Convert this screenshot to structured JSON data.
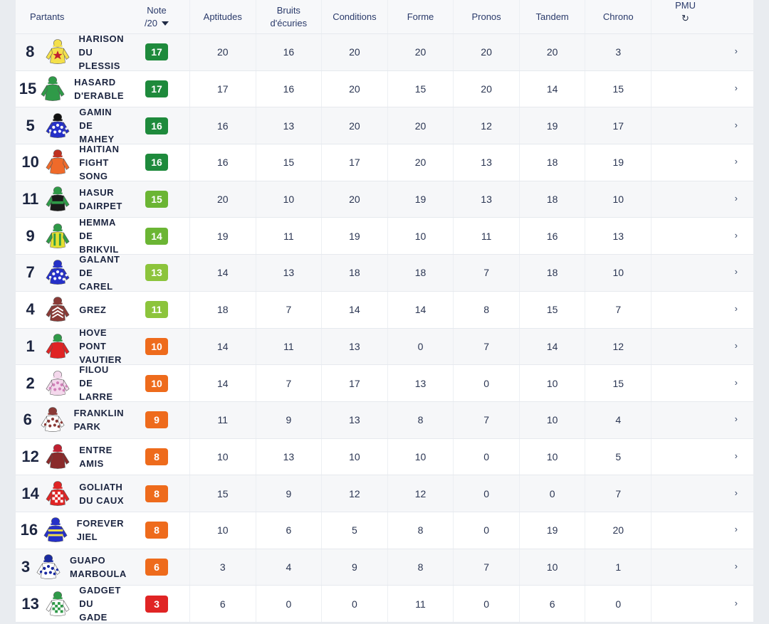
{
  "header": {
    "partants": "Partants",
    "note_line1": "Note",
    "note_line2": "/20",
    "aptitudes": "Aptitudes",
    "bruits_line1": "Bruits",
    "bruits_line2": "d'écuries",
    "conditions": "Conditions",
    "forme": "Forme",
    "pronos": "Pronos",
    "tandem": "Tandem",
    "chrono": "Chrono",
    "pmu": "PMU",
    "pmu_icon": "refresh-icon",
    "sort_icon": "caret-down-icon"
  },
  "colors": {
    "note_17": "#1e8a3c",
    "note_15": "#6bb534",
    "note_13": "#8cc43c",
    "note_11": "#8cc43c",
    "note_10": "#ee6b1c",
    "note_3": "#e02424"
  },
  "rows": [
    {
      "num": "8",
      "name": "HARISON DU PLESSIS",
      "note": "17",
      "note_color": "#1e8a3c",
      "aptitudes": "20",
      "bruits": "16",
      "conditions": "20",
      "forme": "20",
      "pronos": "20",
      "tandem": "20",
      "chrono": "3",
      "silk": {
        "body": "#f4e04a",
        "sleeve": "#f4e04a",
        "cap": "#f4e04a",
        "accent": "#c02030",
        "pattern": "star"
      }
    },
    {
      "num": "15",
      "name": "HASARD D'ERABLE",
      "note": "17",
      "note_color": "#1e8a3c",
      "aptitudes": "17",
      "bruits": "16",
      "conditions": "20",
      "forme": "15",
      "pronos": "20",
      "tandem": "14",
      "chrono": "15",
      "silk": {
        "body": "#2f9a48",
        "sleeve": "#2f9a48",
        "cap": "#2f9a48",
        "accent": "#ffffff",
        "pattern": "plain"
      }
    },
    {
      "num": "5",
      "name": "GAMIN DE MAHEY",
      "note": "16",
      "note_color": "#1e8a3c",
      "aptitudes": "16",
      "bruits": "13",
      "conditions": "20",
      "forme": "20",
      "pronos": "12",
      "tandem": "19",
      "chrono": "17",
      "silk": {
        "body": "#2530c8",
        "sleeve": "#2530c8",
        "cap": "#111111",
        "accent": "#ffffff",
        "pattern": "dots"
      }
    },
    {
      "num": "10",
      "name": "HAITIAN FIGHT SONG",
      "note": "16",
      "note_color": "#1e8a3c",
      "aptitudes": "16",
      "bruits": "15",
      "conditions": "17",
      "forme": "20",
      "pronos": "13",
      "tandem": "18",
      "chrono": "19",
      "silk": {
        "body": "#ef6a2a",
        "sleeve": "#ef6a2a",
        "cap": "#c03020",
        "accent": "#ef6a2a",
        "pattern": "plain"
      }
    },
    {
      "num": "11",
      "name": "HASUR DAIRPET",
      "note": "15",
      "note_color": "#6bb534",
      "aptitudes": "20",
      "bruits": "10",
      "conditions": "20",
      "forme": "19",
      "pronos": "13",
      "tandem": "18",
      "chrono": "10",
      "silk": {
        "body": "#1a1a1a",
        "sleeve": "#2f9a48",
        "cap": "#2f9a48",
        "accent": "#2f9a48",
        "pattern": "band"
      }
    },
    {
      "num": "9",
      "name": "HEMMA DE BRIKVIL",
      "note": "14",
      "note_color": "#6bb534",
      "aptitudes": "19",
      "bruits": "11",
      "conditions": "19",
      "forme": "10",
      "pronos": "11",
      "tandem": "16",
      "chrono": "13",
      "silk": {
        "body": "#e6e030",
        "sleeve": "#2f9a48",
        "cap": "#2f9a48",
        "accent": "#2f9a48",
        "pattern": "stripes"
      }
    },
    {
      "num": "7",
      "name": "GALANT DE CAREL",
      "note": "13",
      "note_color": "#8cc43c",
      "aptitudes": "14",
      "bruits": "13",
      "conditions": "18",
      "forme": "18",
      "pronos": "7",
      "tandem": "18",
      "chrono": "10",
      "silk": {
        "body": "#2530c8",
        "sleeve": "#2530c8",
        "cap": "#2530c8",
        "accent": "#ffffff",
        "pattern": "dots"
      }
    },
    {
      "num": "4",
      "name": "GREZ",
      "note": "11",
      "note_color": "#8cc43c",
      "aptitudes": "18",
      "bruits": "7",
      "conditions": "14",
      "forme": "14",
      "pronos": "8",
      "tandem": "15",
      "chrono": "7",
      "silk": {
        "body": "#8a3a36",
        "sleeve": "#8a3a36",
        "cap": "#8a3a36",
        "accent": "#ffffff",
        "pattern": "chevron"
      }
    },
    {
      "num": "1",
      "name": "HOVE PONT VAUTIER",
      "note": "10",
      "note_color": "#ee6b1c",
      "aptitudes": "14",
      "bruits": "11",
      "conditions": "13",
      "forme": "0",
      "pronos": "7",
      "tandem": "14",
      "chrono": "12",
      "silk": {
        "body": "#e02424",
        "sleeve": "#e02424",
        "cap": "#2f9a48",
        "accent": "#e02424",
        "pattern": "plain"
      }
    },
    {
      "num": "2",
      "name": "FILOU DE LARRE",
      "note": "10",
      "note_color": "#ee6b1c",
      "aptitudes": "14",
      "bruits": "7",
      "conditions": "17",
      "forme": "13",
      "pronos": "0",
      "tandem": "10",
      "chrono": "15",
      "silk": {
        "body": "#f4d8ec",
        "sleeve": "#f4d8ec",
        "cap": "#f4d8ec",
        "accent": "#d080b8",
        "pattern": "dots"
      }
    },
    {
      "num": "6",
      "name": "FRANKLIN PARK",
      "note": "9",
      "note_color": "#ee6b1c",
      "aptitudes": "11",
      "bruits": "9",
      "conditions": "13",
      "forme": "8",
      "pronos": "7",
      "tandem": "10",
      "chrono": "4",
      "silk": {
        "body": "#ffffff",
        "sleeve": "#ffffff",
        "cap": "#8a3a36",
        "accent": "#8a3a36",
        "pattern": "dots"
      }
    },
    {
      "num": "12",
      "name": "ENTRE AMIS",
      "note": "8",
      "note_color": "#ee6b1c",
      "aptitudes": "10",
      "bruits": "13",
      "conditions": "10",
      "forme": "10",
      "pronos": "0",
      "tandem": "10",
      "chrono": "5",
      "silk": {
        "body": "#8a2a2a",
        "sleeve": "#8a2a2a",
        "cap": "#c02030",
        "accent": "#8a2a2a",
        "pattern": "plain"
      }
    },
    {
      "num": "14",
      "name": "GOLIATH DU CAUX",
      "note": "8",
      "note_color": "#ee6b1c",
      "aptitudes": "15",
      "bruits": "9",
      "conditions": "12",
      "forme": "12",
      "pronos": "0",
      "tandem": "0",
      "chrono": "7",
      "silk": {
        "body": "#e02424",
        "sleeve": "#e02424",
        "cap": "#e02424",
        "accent": "#ffffff",
        "pattern": "check"
      }
    },
    {
      "num": "16",
      "name": "FOREVER JIEL",
      "note": "8",
      "note_color": "#ee6b1c",
      "aptitudes": "10",
      "bruits": "6",
      "conditions": "5",
      "forme": "8",
      "pronos": "0",
      "tandem": "19",
      "chrono": "20",
      "silk": {
        "body": "#2530c8",
        "sleeve": "#2530c8",
        "cap": "#2530c8",
        "accent": "#f4e04a",
        "pattern": "hoops"
      }
    },
    {
      "num": "3",
      "name": "GUAPO MARBOULA",
      "note": "6",
      "note_color": "#ee6b1c",
      "aptitudes": "3",
      "bruits": "4",
      "conditions": "9",
      "forme": "8",
      "pronos": "7",
      "tandem": "10",
      "chrono": "1",
      "silk": {
        "body": "#ffffff",
        "sleeve": "#ffffff",
        "cap": "#1a2aa0",
        "accent": "#1a2aa0",
        "pattern": "dots"
      }
    },
    {
      "num": "13",
      "name": "GADGET DU GADE",
      "note": "3",
      "note_color": "#e02424",
      "aptitudes": "6",
      "bruits": "0",
      "conditions": "0",
      "forme": "11",
      "pronos": "0",
      "tandem": "6",
      "chrono": "0",
      "silk": {
        "body": "#ffffff",
        "sleeve": "#ffffff",
        "cap": "#2f9a48",
        "accent": "#2f9a48",
        "pattern": "check"
      }
    }
  ],
  "row_action_icon": "chevron-right-icon"
}
